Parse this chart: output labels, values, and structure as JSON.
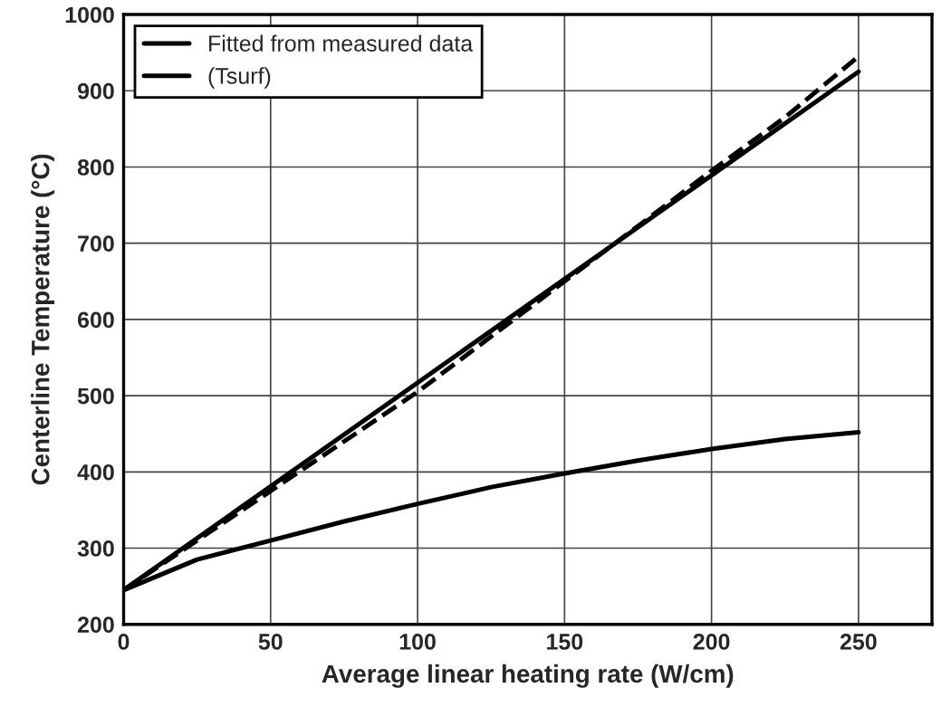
{
  "chart_data": {
    "type": "line",
    "xlabel": "Average linear heating rate (W/cm)",
    "ylabel": "Centerline Temperature (°C)",
    "xlim": [
      0,
      275
    ],
    "xticks": [
      0,
      50,
      100,
      150,
      200,
      250
    ],
    "ylim": [
      200,
      1000
    ],
    "yticks": [
      200,
      300,
      400,
      500,
      600,
      700,
      800,
      900,
      1000
    ],
    "grid": true,
    "legend": "top left",
    "marker": "none",
    "series": [
      {
        "name": "Fitted from measured data",
        "color": "#000000",
        "line_style": "solid",
        "x": [
          0,
          250
        ],
        "values": [
          245,
          925
        ]
      },
      {
        "color": "#000000",
        "line_style": "dashed",
        "x": [
          0,
          50,
          100,
          150,
          200,
          225,
          250
        ],
        "values": [
          245,
          375,
          505,
          650,
          795,
          865,
          945
        ]
      },
      {
        "name": "(Tsurf)",
        "color": "#000000",
        "line_style": "solid",
        "x": [
          0,
          25,
          50,
          75,
          100,
          125,
          150,
          175,
          200,
          225,
          250
        ],
        "values": [
          245,
          285,
          310,
          335,
          358,
          380,
          398,
          415,
          430,
          443,
          452
        ]
      }
    ]
  }
}
